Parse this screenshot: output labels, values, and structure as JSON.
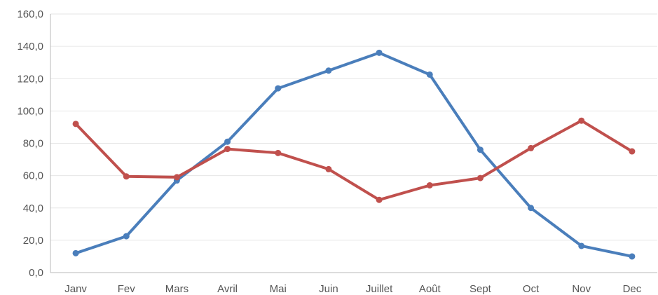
{
  "chart_data": {
    "type": "line",
    "categories": [
      "Janv",
      "Fev",
      "Mars",
      "Avril",
      "Mai",
      "Juin",
      "Juillet",
      "Août",
      "Sept",
      "Oct",
      "Nov",
      "Dec"
    ],
    "series": [
      {
        "color": "#4a7ebb",
        "values": [
          12.0,
          22.5,
          57.0,
          81.0,
          114.0,
          125.0,
          136.0,
          122.5,
          76.0,
          40.0,
          16.5,
          10.0
        ]
      },
      {
        "color": "#c0504d",
        "values": [
          92.0,
          59.5,
          59.0,
          76.5,
          74.0,
          64.0,
          45.0,
          54.0,
          58.5,
          77.0,
          94.0,
          75.0
        ]
      }
    ],
    "y_ticks": [
      "0,0",
      "20,0",
      "40,0",
      "60,0",
      "80,0",
      "100,0",
      "120,0",
      "140,0",
      "160,0"
    ],
    "ylim": [
      0,
      160
    ],
    "grid": true,
    "legend": "none"
  }
}
